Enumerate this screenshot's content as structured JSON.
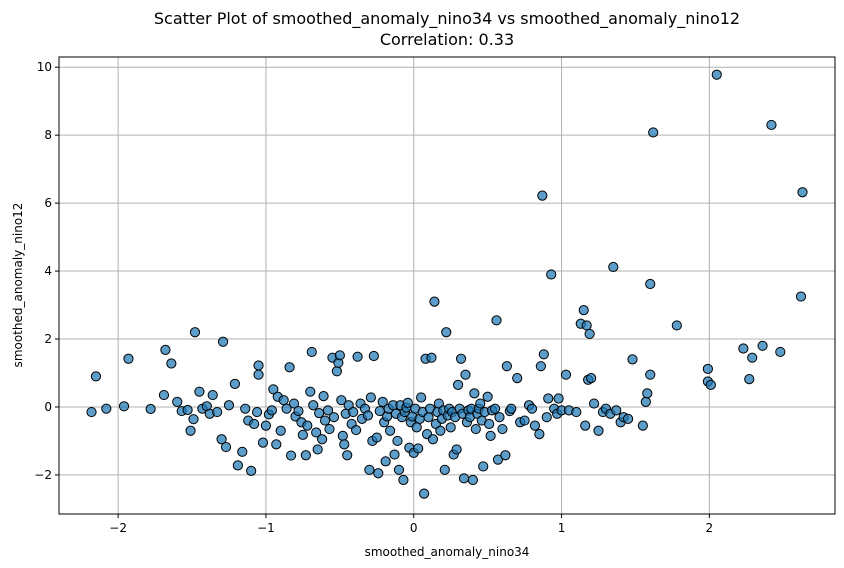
{
  "chart_data": {
    "type": "scatter",
    "title": "Scatter Plot of smoothed_anomaly_nino34 vs smoothed_anomaly_nino12",
    "subtitle": "Correlation: 0.33",
    "xlabel": "smoothed_anomaly_nino34",
    "ylabel": "smoothed_anomaly_nino12",
    "xlim": [
      -2.4,
      2.85
    ],
    "ylim": [
      -3.15,
      10.3
    ],
    "xticks": [
      -2,
      -1,
      0,
      1,
      2
    ],
    "xtick_labels": [
      "−2",
      "−1",
      "0",
      "1",
      "2"
    ],
    "yticks": [
      -2,
      0,
      2,
      4,
      6,
      8,
      10
    ],
    "ytick_labels": [
      "−2",
      "0",
      "2",
      "4",
      "6",
      "8",
      "10"
    ],
    "grid": true,
    "point_color": "#1f77b4",
    "point_edge_color": "#000000",
    "points": [
      [
        -2.18,
        -0.15
      ],
      [
        -2.15,
        0.9
      ],
      [
        -2.08,
        -0.05
      ],
      [
        -1.96,
        0.02
      ],
      [
        -1.93,
        1.42
      ],
      [
        -1.78,
        -0.06
      ],
      [
        -1.69,
        0.35
      ],
      [
        -1.68,
        1.68
      ],
      [
        -1.64,
        1.28
      ],
      [
        -1.6,
        0.15
      ],
      [
        -1.57,
        -0.12
      ],
      [
        -1.53,
        -0.09
      ],
      [
        -1.51,
        -0.7
      ],
      [
        -1.49,
        -0.36
      ],
      [
        -1.48,
        2.2
      ],
      [
        -1.45,
        0.45
      ],
      [
        -1.43,
        -0.05
      ],
      [
        -1.4,
        0.02
      ],
      [
        -1.38,
        -0.2
      ],
      [
        -1.36,
        0.35
      ],
      [
        -1.33,
        -0.15
      ],
      [
        -1.3,
        -0.95
      ],
      [
        -1.29,
        1.92
      ],
      [
        -1.27,
        -1.18
      ],
      [
        -1.25,
        0.05
      ],
      [
        -1.21,
        0.68
      ],
      [
        -1.19,
        -1.72
      ],
      [
        -1.16,
        -1.32
      ],
      [
        -1.14,
        -0.05
      ],
      [
        -1.12,
        -0.4
      ],
      [
        -1.1,
        -1.88
      ],
      [
        -1.08,
        -0.5
      ],
      [
        -1.06,
        -0.15
      ],
      [
        -1.05,
        1.22
      ],
      [
        -1.05,
        0.95
      ],
      [
        -1.02,
        -1.05
      ],
      [
        -1.0,
        -0.55
      ],
      [
        -0.98,
        -0.22
      ],
      [
        -0.96,
        -0.1
      ],
      [
        -0.95,
        0.52
      ],
      [
        -0.93,
        -1.1
      ],
      [
        -0.92,
        0.3
      ],
      [
        -0.9,
        -0.7
      ],
      [
        -0.88,
        0.2
      ],
      [
        -0.86,
        -0.05
      ],
      [
        -0.84,
        1.17
      ],
      [
        -0.83,
        -1.43
      ],
      [
        -0.81,
        0.1
      ],
      [
        -0.8,
        -0.28
      ],
      [
        -0.78,
        -0.12
      ],
      [
        -0.76,
        -0.45
      ],
      [
        -0.75,
        -0.82
      ],
      [
        -0.73,
        -1.42
      ],
      [
        -0.72,
        -0.55
      ],
      [
        -0.7,
        0.45
      ],
      [
        -0.69,
        1.62
      ],
      [
        -0.68,
        0.05
      ],
      [
        -0.66,
        -0.75
      ],
      [
        -0.65,
        -1.25
      ],
      [
        -0.64,
        -0.18
      ],
      [
        -0.62,
        -0.95
      ],
      [
        -0.61,
        0.32
      ],
      [
        -0.6,
        -0.4
      ],
      [
        -0.58,
        -0.1
      ],
      [
        -0.57,
        -0.65
      ],
      [
        -0.55,
        1.45
      ],
      [
        -0.54,
        -0.3
      ],
      [
        -0.52,
        1.05
      ],
      [
        -0.51,
        1.3
      ],
      [
        -0.5,
        1.52
      ],
      [
        -0.49,
        0.2
      ],
      [
        -0.48,
        -0.85
      ],
      [
        -0.47,
        -1.1
      ],
      [
        -0.46,
        -0.2
      ],
      [
        -0.45,
        -1.42
      ],
      [
        -0.44,
        0.05
      ],
      [
        -0.42,
        -0.5
      ],
      [
        -0.41,
        -0.15
      ],
      [
        -0.39,
        -0.68
      ],
      [
        -0.38,
        1.48
      ],
      [
        -0.36,
        0.1
      ],
      [
        -0.35,
        -0.35
      ],
      [
        -0.33,
        -0.05
      ],
      [
        -0.31,
        -0.25
      ],
      [
        -0.3,
        -1.85
      ],
      [
        -0.29,
        0.28
      ],
      [
        -0.28,
        -1.0
      ],
      [
        -0.27,
        1.5
      ],
      [
        -0.25,
        -0.9
      ],
      [
        -0.24,
        -1.95
      ],
      [
        -0.23,
        -0.12
      ],
      [
        -0.21,
        0.15
      ],
      [
        -0.2,
        -0.45
      ],
      [
        -0.19,
        -1.6
      ],
      [
        -0.18,
        -0.28
      ],
      [
        -0.17,
        -0.05
      ],
      [
        -0.16,
        -0.7
      ],
      [
        -0.14,
        0.05
      ],
      [
        -0.13,
        -1.4
      ],
      [
        -0.12,
        -0.2
      ],
      [
        -0.11,
        -1.0
      ],
      [
        -0.1,
        -1.85
      ],
      [
        -0.09,
        0.05
      ],
      [
        -0.08,
        -0.3
      ],
      [
        -0.07,
        -2.15
      ],
      [
        -0.06,
        -0.15
      ],
      [
        -0.05,
        -0.02
      ],
      [
        -0.04,
        0.12
      ],
      [
        -0.03,
        -1.2
      ],
      [
        -0.02,
        -0.45
      ],
      [
        -0.01,
        -0.28
      ],
      [
        0.0,
        -1.35
      ],
      [
        0.01,
        -0.05
      ],
      [
        0.02,
        -0.6
      ],
      [
        0.03,
        -1.22
      ],
      [
        0.04,
        -0.35
      ],
      [
        0.05,
        0.28
      ],
      [
        0.06,
        -0.15
      ],
      [
        0.07,
        -2.55
      ],
      [
        0.08,
        1.42
      ],
      [
        0.09,
        -0.8
      ],
      [
        0.1,
        -0.3
      ],
      [
        0.11,
        -0.05
      ],
      [
        0.12,
        1.45
      ],
      [
        0.13,
        -0.95
      ],
      [
        0.14,
        3.1
      ],
      [
        0.15,
        -0.5
      ],
      [
        0.16,
        -0.15
      ],
      [
        0.17,
        0.1
      ],
      [
        0.18,
        -0.7
      ],
      [
        0.19,
        -0.35
      ],
      [
        0.2,
        -0.1
      ],
      [
        0.21,
        -1.85
      ],
      [
        0.22,
        2.2
      ],
      [
        0.23,
        -0.25
      ],
      [
        0.24,
        -0.05
      ],
      [
        0.25,
        -0.6
      ],
      [
        0.26,
        -0.15
      ],
      [
        0.27,
        -1.4
      ],
      [
        0.28,
        -0.3
      ],
      [
        0.29,
        -1.25
      ],
      [
        0.3,
        0.65
      ],
      [
        0.31,
        -0.05
      ],
      [
        0.32,
        1.42
      ],
      [
        0.33,
        -0.2
      ],
      [
        0.34,
        -2.1
      ],
      [
        0.35,
        0.95
      ],
      [
        0.36,
        -0.45
      ],
      [
        0.37,
        -0.1
      ],
      [
        0.38,
        -0.3
      ],
      [
        0.39,
        -0.05
      ],
      [
        0.4,
        -2.15
      ],
      [
        0.41,
        0.4
      ],
      [
        0.42,
        -0.65
      ],
      [
        0.43,
        -0.2
      ],
      [
        0.44,
        -0.05
      ],
      [
        0.45,
        0.1
      ],
      [
        0.46,
        -0.4
      ],
      [
        0.47,
        -1.75
      ],
      [
        0.48,
        -0.15
      ],
      [
        0.5,
        0.3
      ],
      [
        0.51,
        -0.5
      ],
      [
        0.52,
        -0.85
      ],
      [
        0.53,
        -0.1
      ],
      [
        0.55,
        -0.05
      ],
      [
        0.56,
        2.55
      ],
      [
        0.57,
        -1.55
      ],
      [
        0.58,
        -0.3
      ],
      [
        0.6,
        -0.65
      ],
      [
        0.62,
        -1.42
      ],
      [
        0.63,
        1.2
      ],
      [
        0.65,
        -0.12
      ],
      [
        0.66,
        -0.05
      ],
      [
        0.7,
        0.85
      ],
      [
        0.72,
        -0.45
      ],
      [
        0.75,
        -0.4
      ],
      [
        0.78,
        0.05
      ],
      [
        0.8,
        -0.05
      ],
      [
        0.82,
        -0.55
      ],
      [
        0.85,
        -0.8
      ],
      [
        0.86,
        1.2
      ],
      [
        0.87,
        6.22
      ],
      [
        0.88,
        1.55
      ],
      [
        0.9,
        -0.3
      ],
      [
        0.91,
        0.25
      ],
      [
        0.93,
        3.9
      ],
      [
        0.95,
        -0.05
      ],
      [
        0.97,
        -0.2
      ],
      [
        0.98,
        0.25
      ],
      [
        1.0,
        -0.1
      ],
      [
        1.03,
        0.95
      ],
      [
        1.05,
        -0.1
      ],
      [
        1.1,
        -0.15
      ],
      [
        1.13,
        2.45
      ],
      [
        1.15,
        2.85
      ],
      [
        1.16,
        -0.55
      ],
      [
        1.17,
        2.4
      ],
      [
        1.18,
        0.8
      ],
      [
        1.19,
        2.15
      ],
      [
        1.2,
        0.85
      ],
      [
        1.22,
        0.1
      ],
      [
        1.25,
        -0.7
      ],
      [
        1.28,
        -0.15
      ],
      [
        1.3,
        -0.05
      ],
      [
        1.33,
        -0.2
      ],
      [
        1.35,
        4.12
      ],
      [
        1.37,
        -0.1
      ],
      [
        1.4,
        -0.45
      ],
      [
        1.42,
        -0.3
      ],
      [
        1.45,
        -0.35
      ],
      [
        1.48,
        1.4
      ],
      [
        1.55,
        -0.55
      ],
      [
        1.57,
        0.15
      ],
      [
        1.58,
        0.4
      ],
      [
        1.6,
        0.95
      ],
      [
        1.6,
        3.62
      ],
      [
        1.62,
        8.08
      ],
      [
        1.78,
        2.4
      ],
      [
        1.99,
        1.12
      ],
      [
        1.99,
        0.75
      ],
      [
        2.01,
        0.65
      ],
      [
        2.05,
        9.78
      ],
      [
        2.23,
        1.72
      ],
      [
        2.27,
        0.82
      ],
      [
        2.29,
        1.45
      ],
      [
        2.36,
        1.8
      ],
      [
        2.42,
        8.3
      ],
      [
        2.48,
        1.62
      ],
      [
        2.62,
        3.25
      ],
      [
        2.63,
        6.32
      ]
    ]
  }
}
